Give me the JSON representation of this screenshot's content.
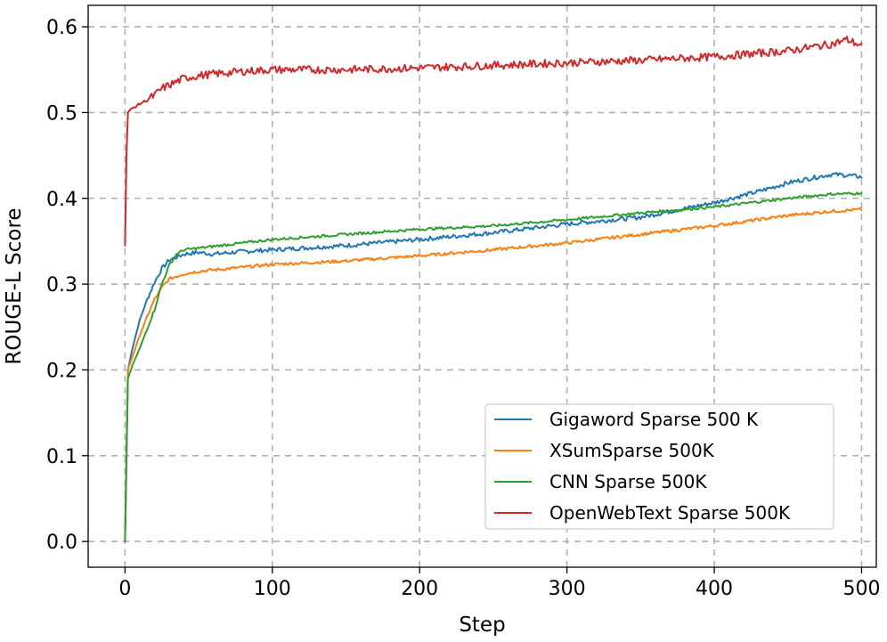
{
  "chart_data": {
    "type": "line",
    "title": "",
    "xlabel": "Step",
    "ylabel": "ROUGE-L Score",
    "xlim": [
      -25,
      510
    ],
    "ylim": [
      -0.03,
      0.625
    ],
    "xticks": [
      0,
      100,
      200,
      300,
      400,
      500
    ],
    "yticks": [
      0.0,
      0.1,
      0.2,
      0.3,
      0.4,
      0.5,
      0.6
    ],
    "xtick_labels": [
      "0",
      "100",
      "200",
      "300",
      "400",
      "500"
    ],
    "ytick_labels": [
      "0.0",
      "0.1",
      "0.2",
      "0.3",
      "0.4",
      "0.5",
      "0.6"
    ],
    "grid": true,
    "legend_position": "lower-right",
    "series": [
      {
        "name": "Gigaword Sparse 500 K",
        "color": "#1f77b4",
        "x": [
          0,
          2,
          5,
          10,
          15,
          20,
          25,
          30,
          40,
          50,
          60,
          80,
          100,
          150,
          200,
          250,
          300,
          350,
          400,
          430,
          450,
          470,
          480,
          490,
          500
        ],
        "y": [
          0.0,
          0.2,
          0.225,
          0.258,
          0.282,
          0.302,
          0.318,
          0.328,
          0.335,
          0.337,
          0.335,
          0.338,
          0.34,
          0.345,
          0.352,
          0.36,
          0.37,
          0.378,
          0.395,
          0.408,
          0.418,
          0.425,
          0.428,
          0.427,
          0.425
        ]
      },
      {
        "name": "XSumSparse 500K",
        "color": "#ff7f0e",
        "x": [
          0,
          2,
          5,
          10,
          15,
          20,
          25,
          30,
          40,
          50,
          70,
          100,
          150,
          200,
          250,
          300,
          350,
          400,
          450,
          480,
          500
        ],
        "y": [
          0.0,
          0.2,
          0.215,
          0.24,
          0.262,
          0.282,
          0.296,
          0.306,
          0.312,
          0.315,
          0.318,
          0.323,
          0.327,
          0.333,
          0.34,
          0.348,
          0.358,
          0.368,
          0.38,
          0.385,
          0.387
        ]
      },
      {
        "name": "CNN Sparse 500K",
        "color": "#2ca02c",
        "x": [
          0,
          2,
          5,
          10,
          15,
          20,
          25,
          30,
          35,
          40,
          50,
          60,
          80,
          100,
          150,
          200,
          250,
          300,
          350,
          400,
          450,
          480,
          500
        ],
        "y": [
          0.0,
          0.19,
          0.205,
          0.225,
          0.248,
          0.27,
          0.3,
          0.322,
          0.335,
          0.34,
          0.342,
          0.344,
          0.348,
          0.352,
          0.358,
          0.364,
          0.368,
          0.375,
          0.383,
          0.39,
          0.4,
          0.405,
          0.406
        ]
      },
      {
        "name": "OpenWebText Sparse 500K",
        "color": "#d62728",
        "x": [
          0,
          1,
          2,
          5,
          10,
          15,
          20,
          25,
          30,
          40,
          50,
          60,
          80,
          100,
          150,
          200,
          250,
          300,
          350,
          400,
          450,
          480,
          490,
          500
        ],
        "y": [
          0.345,
          0.45,
          0.5,
          0.505,
          0.51,
          0.515,
          0.52,
          0.528,
          0.532,
          0.54,
          0.543,
          0.545,
          0.548,
          0.55,
          0.55,
          0.552,
          0.555,
          0.558,
          0.561,
          0.565,
          0.572,
          0.58,
          0.585,
          0.578
        ]
      }
    ]
  }
}
